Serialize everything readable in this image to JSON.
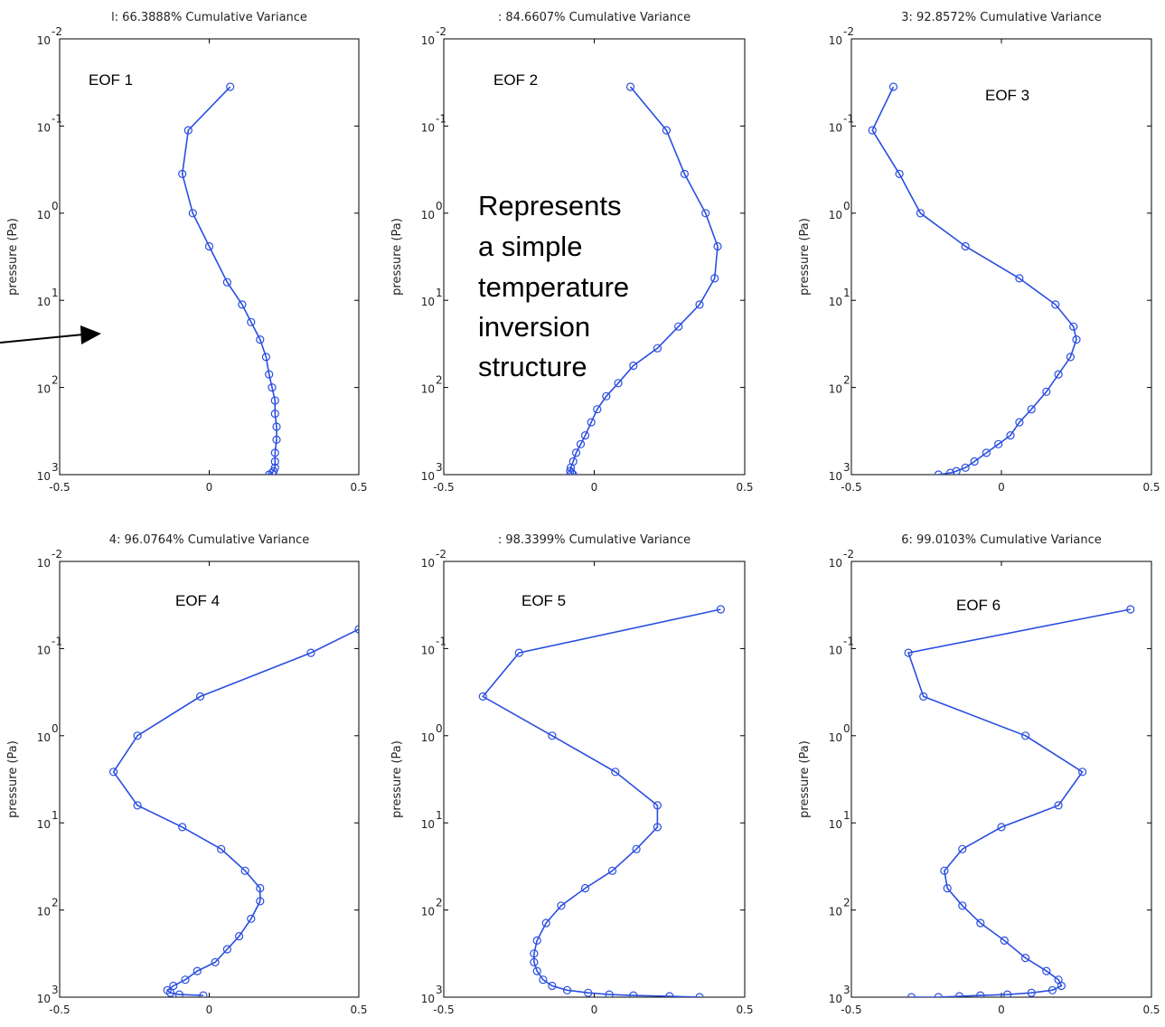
{
  "annotation": {
    "lines": [
      "Represents",
      "a simple",
      "temperature",
      "inversion",
      "structure"
    ]
  },
  "chart_data": [
    {
      "type": "line",
      "title": "l: 66.3888% Cumulative Variance",
      "panel_label": "EOF 1",
      "ylabel": "pressure (Pa)",
      "xlim": [
        -0.5,
        0.5
      ],
      "x_ticks": [
        "-0.5",
        "0",
        "0.5"
      ],
      "y_scale": "log",
      "ylim": [
        0.01,
        1000
      ],
      "y_ticks": [
        {
          "base": "10",
          "exp": "-2"
        },
        {
          "base": "10",
          "exp": "-1"
        },
        {
          "base": "10",
          "exp": "0"
        },
        {
          "base": "10",
          "exp": "1"
        },
        {
          "base": "10",
          "exp": "2"
        },
        {
          "base": "10",
          "exp": "3"
        }
      ],
      "y_inverted": false,
      "series": [
        {
          "color": "#2a4ee0",
          "points": [
            [
              0.07,
              0.0355
            ],
            [
              -0.07,
              0.112
            ],
            [
              -0.09,
              0.355
            ],
            [
              -0.055,
              1.0
            ],
            [
              0.0,
              2.4
            ],
            [
              0.06,
              6.2
            ],
            [
              0.11,
              11.2
            ],
            [
              0.14,
              17.8
            ],
            [
              0.17,
              28.2
            ],
            [
              0.19,
              44.7
            ],
            [
              0.2,
              70.8
            ],
            [
              0.21,
              100
            ],
            [
              0.22,
              141
            ],
            [
              0.22,
              200
            ],
            [
              0.225,
              282
            ],
            [
              0.225,
              398
            ],
            [
              0.22,
              562
            ],
            [
              0.22,
              708
            ],
            [
              0.22,
              832
            ],
            [
              0.215,
              912
            ],
            [
              0.21,
              955
            ],
            [
              0.2,
              1000
            ]
          ]
        }
      ]
    },
    {
      "type": "line",
      "title": ": 84.6607% Cumulative Variance",
      "panel_label": "EOF 2",
      "ylabel": "pressure (Pa)",
      "xlim": [
        -0.5,
        0.5
      ],
      "x_ticks": [
        "-0.5",
        "0",
        "0.5"
      ],
      "y_scale": "log",
      "ylim": [
        0.01,
        1000
      ],
      "y_ticks": [
        {
          "base": "10",
          "exp": "-2"
        },
        {
          "base": "10",
          "exp": "-1"
        },
        {
          "base": "10",
          "exp": "0"
        },
        {
          "base": "10",
          "exp": "1"
        },
        {
          "base": "10",
          "exp": "2"
        },
        {
          "base": "10",
          "exp": "3"
        }
      ],
      "series": [
        {
          "color": "#2a4ee0",
          "points": [
            [
              0.12,
              0.0355
            ],
            [
              0.24,
              0.112
            ],
            [
              0.3,
              0.355
            ],
            [
              0.37,
              1.0
            ],
            [
              0.41,
              2.4
            ],
            [
              0.4,
              5.6
            ],
            [
              0.35,
              11.2
            ],
            [
              0.28,
              20.0
            ],
            [
              0.21,
              35.5
            ],
            [
              0.13,
              56.2
            ],
            [
              0.08,
              89.1
            ],
            [
              0.04,
              126
            ],
            [
              0.01,
              178
            ],
            [
              -0.01,
              251
            ],
            [
              -0.03,
              355
            ],
            [
              -0.045,
              447
            ],
            [
              -0.06,
              562
            ],
            [
              -0.07,
              708
            ],
            [
              -0.078,
              832
            ],
            [
              -0.08,
              912
            ],
            [
              -0.075,
              955
            ],
            [
              -0.07,
              1000
            ]
          ]
        }
      ]
    },
    {
      "type": "line",
      "title": "3: 92.8572% Cumulative Variance",
      "panel_label": "EOF 3",
      "ylabel": "pressure (Pa)",
      "xlim": [
        -0.5,
        0.5
      ],
      "x_ticks": [
        "-0.5",
        "0",
        "0.5"
      ],
      "y_scale": "log",
      "ylim": [
        0.01,
        1000
      ],
      "y_ticks": [
        {
          "base": "10",
          "exp": "-2"
        },
        {
          "base": "10",
          "exp": "-1"
        },
        {
          "base": "10",
          "exp": "0"
        },
        {
          "base": "10",
          "exp": "1"
        },
        {
          "base": "10",
          "exp": "2"
        },
        {
          "base": "10",
          "exp": "3"
        }
      ],
      "series": [
        {
          "color": "#2a4ee0",
          "points": [
            [
              -0.36,
              0.0355
            ],
            [
              -0.43,
              0.112
            ],
            [
              -0.34,
              0.355
            ],
            [
              -0.27,
              1.0
            ],
            [
              -0.12,
              2.4
            ],
            [
              0.06,
              5.6
            ],
            [
              0.18,
              11.2
            ],
            [
              0.24,
              20.0
            ],
            [
              0.25,
              28.2
            ],
            [
              0.23,
              44.7
            ],
            [
              0.19,
              70.8
            ],
            [
              0.15,
              112
            ],
            [
              0.1,
              178
            ],
            [
              0.06,
              251
            ],
            [
              0.03,
              355
            ],
            [
              -0.01,
              447
            ],
            [
              -0.05,
              562
            ],
            [
              -0.09,
              708
            ],
            [
              -0.12,
              832
            ],
            [
              -0.15,
              912
            ],
            [
              -0.17,
              955
            ],
            [
              -0.21,
              1000
            ]
          ]
        }
      ]
    },
    {
      "type": "line",
      "title": "4: 96.0764% Cumulative Variance",
      "panel_label": "EOF 4",
      "ylabel": "pressure (Pa)",
      "xlim": [
        -0.5,
        0.5
      ],
      "x_ticks": [
        "-0.5",
        "0",
        "0.5"
      ],
      "y_scale": "log",
      "ylim": [
        0.01,
        1000
      ],
      "y_ticks": [
        {
          "base": "10",
          "exp": "-2"
        },
        {
          "base": "10",
          "exp": "-1"
        },
        {
          "base": "10",
          "exp": "0"
        },
        {
          "base": "10",
          "exp": "1"
        },
        {
          "base": "10",
          "exp": "2"
        },
        {
          "base": "10",
          "exp": "3"
        }
      ],
      "series": [
        {
          "color": "#2a4ee0",
          "points": [
            [
              0.5,
              0.06
            ],
            [
              0.34,
              0.112
            ],
            [
              -0.03,
              0.355
            ],
            [
              -0.24,
              1.0
            ],
            [
              -0.32,
              2.6
            ],
            [
              -0.24,
              6.3
            ],
            [
              -0.09,
              11.2
            ],
            [
              0.04,
              20.0
            ],
            [
              0.12,
              35.5
            ],
            [
              0.17,
              56.2
            ],
            [
              0.17,
              79.4
            ],
            [
              0.14,
              126
            ],
            [
              0.1,
              200
            ],
            [
              0.06,
              282
            ],
            [
              0.02,
              398
            ],
            [
              -0.04,
              501
            ],
            [
              -0.08,
              631
            ],
            [
              -0.12,
              741
            ],
            [
              -0.14,
              832
            ],
            [
              -0.13,
              891
            ],
            [
              -0.1,
              933
            ],
            [
              -0.02,
              955
            ]
          ]
        }
      ]
    },
    {
      "type": "line",
      "title": ": 98.3399% Cumulative Variance",
      "panel_label": "EOF 5",
      "ylabel": "pressure (Pa)",
      "xlim": [
        -0.5,
        0.5
      ],
      "x_ticks": [
        "-0.5",
        "0",
        "0.5"
      ],
      "y_scale": "log",
      "ylim": [
        0.01,
        1000
      ],
      "y_ticks": [
        {
          "base": "10",
          "exp": "-2"
        },
        {
          "base": "10",
          "exp": "-1"
        },
        {
          "base": "10",
          "exp": "0"
        },
        {
          "base": "10",
          "exp": "1"
        },
        {
          "base": "10",
          "exp": "2"
        },
        {
          "base": "10",
          "exp": "3"
        }
      ],
      "series": [
        {
          "color": "#2a4ee0",
          "points": [
            [
              0.42,
              0.0355
            ],
            [
              -0.25,
              0.112
            ],
            [
              -0.37,
              0.355
            ],
            [
              -0.14,
              1.0
            ],
            [
              0.07,
              2.6
            ],
            [
              0.21,
              6.3
            ],
            [
              0.21,
              11.2
            ],
            [
              0.14,
              20.0
            ],
            [
              0.06,
              35.5
            ],
            [
              -0.03,
              56.2
            ],
            [
              -0.11,
              89.1
            ],
            [
              -0.16,
              141
            ],
            [
              -0.19,
              224
            ],
            [
              -0.2,
              316
            ],
            [
              -0.2,
              398
            ],
            [
              -0.19,
              501
            ],
            [
              -0.17,
              631
            ],
            [
              -0.14,
              741
            ],
            [
              -0.09,
              832
            ],
            [
              -0.02,
              891
            ],
            [
              0.05,
              933
            ],
            [
              0.13,
              955
            ],
            [
              0.25,
              977
            ],
            [
              0.35,
              1000
            ]
          ]
        }
      ]
    },
    {
      "type": "line",
      "title": "6: 99.0103% Cumulative Variance",
      "panel_label": "EOF 6",
      "ylabel": "pressure (Pa)",
      "xlim": [
        -0.5,
        0.5
      ],
      "x_ticks": [
        "-0.5",
        "0",
        "0.5"
      ],
      "y_scale": "log",
      "ylim": [
        0.01,
        1000
      ],
      "y_ticks": [
        {
          "base": "10",
          "exp": "-2"
        },
        {
          "base": "10",
          "exp": "-1"
        },
        {
          "base": "10",
          "exp": "0"
        },
        {
          "base": "10",
          "exp": "1"
        },
        {
          "base": "10",
          "exp": "2"
        },
        {
          "base": "10",
          "exp": "3"
        }
      ],
      "series": [
        {
          "color": "#2a4ee0",
          "points": [
            [
              0.43,
              0.0355
            ],
            [
              -0.31,
              0.112
            ],
            [
              -0.26,
              0.355
            ],
            [
              0.08,
              1.0
            ],
            [
              0.27,
              2.6
            ],
            [
              0.19,
              6.3
            ],
            [
              0.0,
              11.2
            ],
            [
              -0.13,
              20.0
            ],
            [
              -0.19,
              35.5
            ],
            [
              -0.18,
              56.2
            ],
            [
              -0.13,
              89.1
            ],
            [
              -0.07,
              141
            ],
            [
              0.01,
              224
            ],
            [
              0.08,
              355
            ],
            [
              0.15,
              501
            ],
            [
              0.19,
              631
            ],
            [
              0.2,
              741
            ],
            [
              0.17,
              832
            ],
            [
              0.1,
              891
            ],
            [
              0.02,
              933
            ],
            [
              -0.07,
              955
            ],
            [
              -0.14,
              977
            ],
            [
              -0.21,
              1000
            ],
            [
              -0.3,
              1000
            ]
          ]
        }
      ]
    }
  ]
}
